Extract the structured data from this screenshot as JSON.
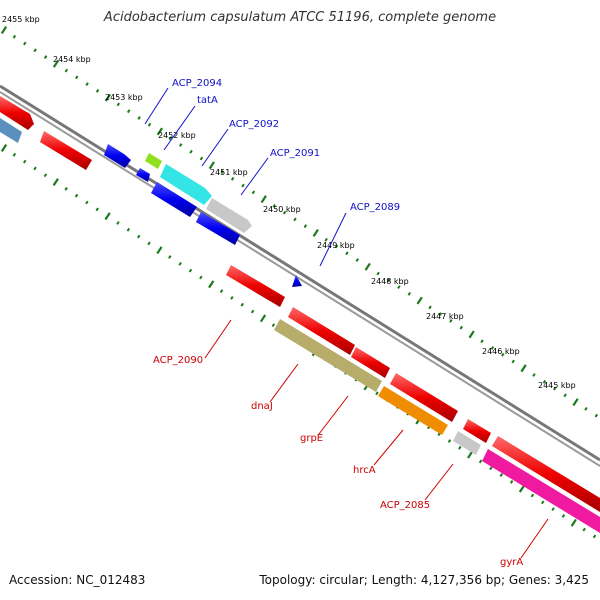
{
  "title": "Acidobacterium capsulatum ATCC 51196, complete genome",
  "accession": "Accession: NC_012483",
  "summary": "Topology: circular; Length: 4,127,356 bp; Genes: 3,425",
  "colors": {
    "forward_label": "#1010c8",
    "reverse_label": "#cc0000",
    "tick": "#1a7a1a",
    "backbone": "#777777"
  },
  "kbp_ticks": [
    "2455 kbp",
    "2454 kbp",
    "2453 kbp",
    "2452 kbp",
    "2451 kbp",
    "2450 kbp",
    "2449 kbp",
    "2448 kbp",
    "2447 kbp",
    "2446 kbp",
    "2445 kbp"
  ],
  "gene_labels": {
    "forward": [
      "ACP_2094",
      "tatA",
      "ACP_2092",
      "ACP_2091",
      "ACP_2089"
    ],
    "reverse": [
      "ACP_2090",
      "dnaJ",
      "grpE",
      "hrcA",
      "ACP_2085",
      "gyrA"
    ]
  }
}
